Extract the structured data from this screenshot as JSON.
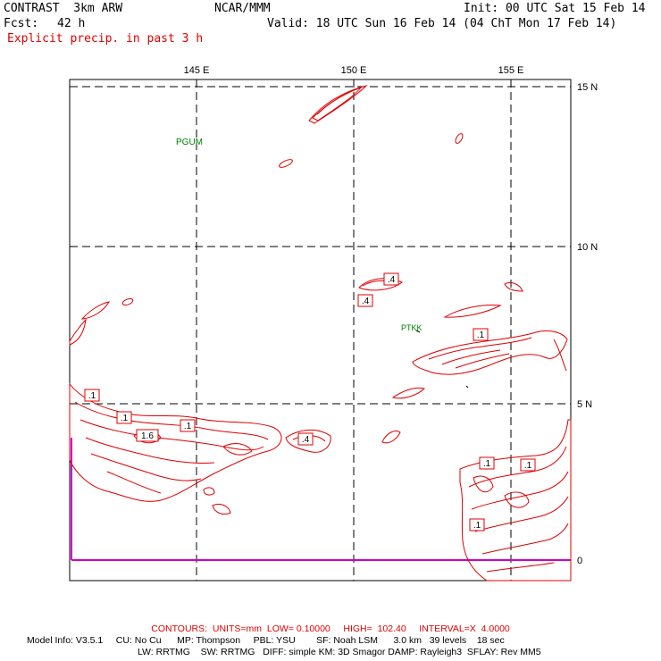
{
  "header": {
    "model_line": "CONTRAST  3km ARW",
    "org": "NCAR/MMM",
    "init": "Init: 00 UTC Sat 15 Feb 14",
    "fcst_label": "Fcst:",
    "fcst_value": "42 h",
    "valid": "Valid: 18 UTC Sun 16 Feb 14 (04 ChT Mon 17 Feb 14)",
    "field_title": "Explicit precip. in past 3 h"
  },
  "map": {
    "lon_labels": [
      "145 E",
      "150 E",
      "155 E"
    ],
    "lat_labels": [
      "15 N",
      "10 N",
      "5 N",
      "0"
    ],
    "stations": [
      {
        "id": "PGUM",
        "label": "PGUM"
      },
      {
        "id": "PTKK",
        "label": "PTKK"
      }
    ],
    "contour_labels": [
      ".1",
      ".1",
      "1.6",
      ".1",
      ".4",
      ".4",
      ".4",
      ".1",
      ".1",
      ".1",
      ".1"
    ],
    "colors": {
      "contour": "#e00000",
      "station": "#008000",
      "boundary": "#cc00cc",
      "grid": "#000000"
    }
  },
  "footer": {
    "contours": "CONTOURS:  UNITS=mm  LOW= 0.10000     HIGH=  102.40     INTERVAL=X  4.0000",
    "model_info_1": "Model Info: V3.5.1     CU: No Cu      MP: Thompson     PBL: YSU        SF: Noah LSM      3.0 km   39 levels    18 sec",
    "model_info_2": "LW: RRTMG    SW: RRTMG   DIFF: simple KM: 3D Smagor DAMP: Rayleigh3  SFLAY: Rev MM5"
  }
}
